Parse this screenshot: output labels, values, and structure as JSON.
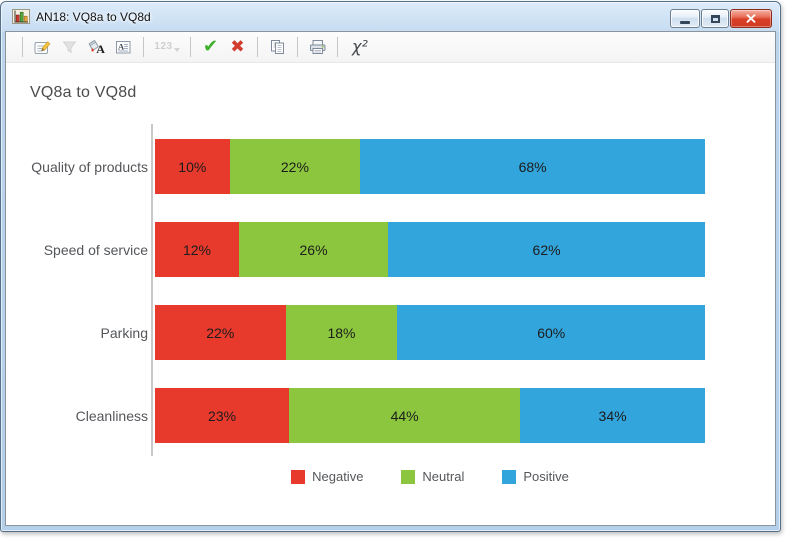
{
  "window": {
    "title": "AN18: VQ8a to VQ8d",
    "icon": "bar-chart-window-icon",
    "controls": [
      "minimize",
      "maximize",
      "close"
    ]
  },
  "toolbar": {
    "items": [
      {
        "name": "properties",
        "icon": "properties-form-pencil-icon",
        "enabled": true
      },
      {
        "name": "filter",
        "icon": "filter-funnel-icon",
        "enabled": false
      },
      {
        "name": "format-fill",
        "icon": "paint-can-letter-icon",
        "enabled": true
      },
      {
        "name": "text-view",
        "icon": "text-document-icon",
        "enabled": true
      },
      {
        "name": "numeric-format",
        "icon": "numeric-123-icon",
        "label": "123",
        "enabled": false
      },
      {
        "name": "accept",
        "icon": "green-check-icon",
        "enabled": true
      },
      {
        "name": "reject",
        "icon": "red-cross-icon",
        "enabled": true
      },
      {
        "name": "copy",
        "icon": "copy-pages-icon",
        "enabled": true
      },
      {
        "name": "print",
        "icon": "printer-icon",
        "enabled": true
      },
      {
        "name": "chi-squared",
        "icon": "chi-squared-icon",
        "label": "χ²",
        "enabled": true
      }
    ]
  },
  "chart_data": {
    "type": "bar",
    "stacked": true,
    "orientation": "horizontal",
    "title": "VQ8a to VQ8d",
    "categories": [
      "Quality of products",
      "Speed of service",
      "Parking",
      "Cleanliness"
    ],
    "series": [
      {
        "name": "Negative",
        "color": "#E8392D",
        "values": [
          10,
          12,
          22,
          23
        ]
      },
      {
        "name": "Neutral",
        "color": "#8CC63E",
        "values": [
          22,
          26,
          18,
          44
        ]
      },
      {
        "name": "Positive",
        "color": "#31A5DC",
        "values": [
          68,
          62,
          60,
          34
        ]
      }
    ],
    "value_suffix": "%",
    "xlim": [
      0,
      100
    ],
    "xlabel": "",
    "ylabel": "",
    "grid": false,
    "legend_position": "bottom"
  }
}
